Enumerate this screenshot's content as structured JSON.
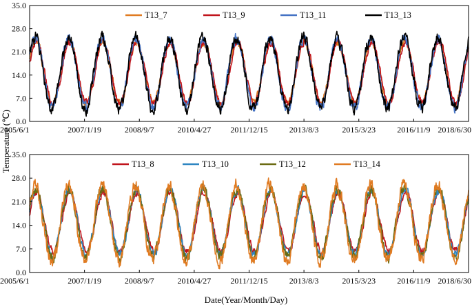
{
  "ylabel": "Temperature (℃)",
  "xlabel": "Date(Year/Month/Day)",
  "chart_data": [
    {
      "type": "line",
      "x_ticks": [
        "2005/6/1",
        "2007/1/19",
        "2008/9/7",
        "2010/4/27",
        "2011/12/15",
        "2013/8/3",
        "2015/3/23",
        "2016/11/9",
        "2018/6/30"
      ],
      "y_ticks": [
        "0.0",
        "7.0",
        "14.0",
        "21.0",
        "28.0",
        "35.0"
      ],
      "xlim": [
        "2005-06-01",
        "2018-06-30"
      ],
      "ylim": [
        0,
        35
      ],
      "grid": false,
      "legend_position": "top",
      "series": [
        {
          "name": "T13_7",
          "color": "#e07b22",
          "mean": 14.8,
          "amp": 9.3,
          "lag_days": 5,
          "noise": 1.0
        },
        {
          "name": "T13_9",
          "color": "#c0141c",
          "mean": 14.8,
          "amp": 9.2,
          "lag_days": 10,
          "noise": 0.8
        },
        {
          "name": "T13_11",
          "color": "#4472c4",
          "mean": 14.6,
          "amp": 10.4,
          "lag_days": 0,
          "noise": 1.2
        },
        {
          "name": "T13_13",
          "color": "#000000",
          "mean": 14.6,
          "amp": 10.8,
          "lag_days": -3,
          "noise": 1.4
        }
      ]
    },
    {
      "type": "line",
      "x_ticks": [
        "2005/6/1",
        "2007/1/19",
        "2008/9/7",
        "2010/4/27",
        "2011/12/15",
        "2013/8/3",
        "2015/3/23",
        "2016/11/9",
        "2018/6/30"
      ],
      "y_ticks": [
        "0.0",
        "7.0",
        "14.0",
        "21.0",
        "28.0",
        "35.0"
      ],
      "xlim": [
        "2005-06-01",
        "2018-06-30"
      ],
      "ylim": [
        0,
        35
      ],
      "grid": false,
      "legend_position": "top",
      "series": [
        {
          "name": "T13_8",
          "color": "#c0141c",
          "mean": 15.0,
          "amp": 8.8,
          "lag_days": 12,
          "noise": 0.8
        },
        {
          "name": "T13_10",
          "color": "#2e86c1",
          "mean": 14.9,
          "amp": 9.6,
          "lag_days": 6,
          "noise": 1.0
        },
        {
          "name": "T13_12",
          "color": "#6b6b12",
          "mean": 14.8,
          "amp": 10.2,
          "lag_days": 2,
          "noise": 1.2
        },
        {
          "name": "T13_14",
          "color": "#e07b22",
          "mean": 14.6,
          "amp": 11.2,
          "lag_days": -3,
          "noise": 1.5
        }
      ]
    }
  ]
}
